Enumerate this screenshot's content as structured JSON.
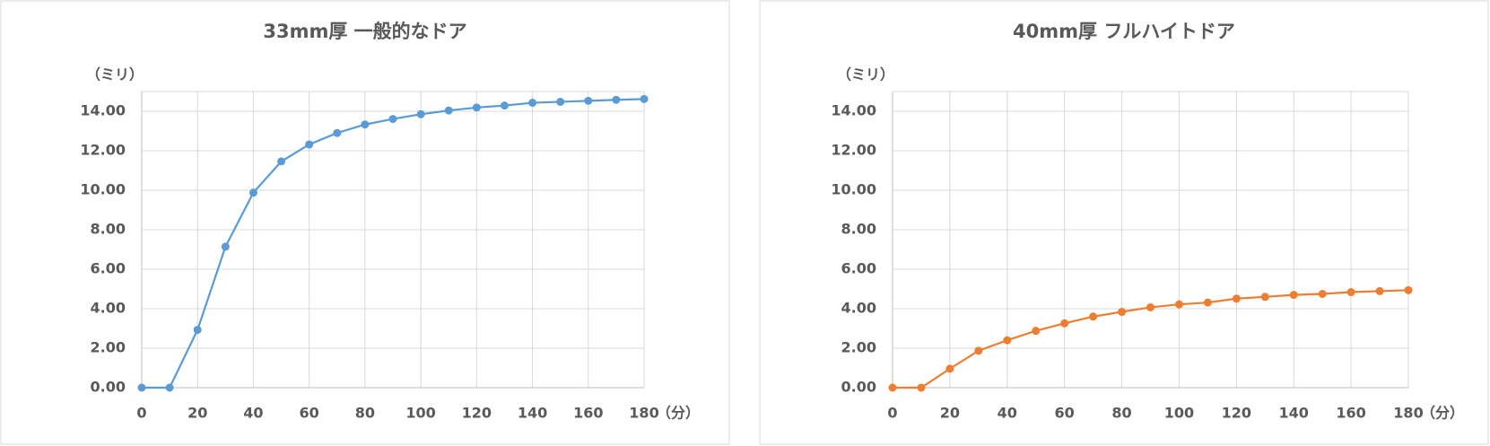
{
  "chart_data": [
    {
      "type": "line",
      "title": "33mm厚 一般的なドア",
      "y_label": "（ミリ）",
      "x_label": "（分）",
      "x": [
        0,
        10,
        20,
        30,
        40,
        50,
        60,
        70,
        80,
        90,
        100,
        110,
        120,
        130,
        140,
        150,
        160,
        170,
        180
      ],
      "series": [
        {
          "color": "#5b9bd5",
          "values": [
            0,
            0,
            2.93,
            7.14,
            9.88,
            11.46,
            12.32,
            12.9,
            13.33,
            13.61,
            13.85,
            14.04,
            14.19,
            14.29,
            14.43,
            14.48,
            14.53,
            14.58,
            14.62
          ]
        }
      ],
      "xlim": [
        0,
        180
      ],
      "xticks": [
        0,
        20,
        40,
        60,
        80,
        100,
        120,
        140,
        160,
        180
      ],
      "ylim": [
        0,
        15
      ],
      "yticks": [
        {
          "value": 0,
          "label": "0.00"
        },
        {
          "value": 2,
          "label": "2.00"
        },
        {
          "value": 4,
          "label": "4.00"
        },
        {
          "value": 6,
          "label": "6.00"
        },
        {
          "value": 8,
          "label": "8.00"
        },
        {
          "value": 10,
          "label": "10.00"
        },
        {
          "value": 12,
          "label": "12.00"
        },
        {
          "value": 14,
          "label": "14.00"
        }
      ],
      "grid": true
    },
    {
      "type": "line",
      "title": "40mm厚 フルハイトドア",
      "y_label": "（ミリ）",
      "x_label": "（分）",
      "x": [
        0,
        10,
        20,
        30,
        40,
        50,
        60,
        70,
        80,
        90,
        100,
        110,
        120,
        130,
        140,
        150,
        160,
        170,
        180
      ],
      "series": [
        {
          "color": "#ed7d31",
          "values": [
            0,
            0,
            0.96,
            1.87,
            2.4,
            2.88,
            3.26,
            3.6,
            3.84,
            4.07,
            4.22,
            4.31,
            4.51,
            4.6,
            4.7,
            4.75,
            4.84,
            4.89,
            4.94
          ]
        }
      ],
      "xlim": [
        0,
        180
      ],
      "xticks": [
        0,
        20,
        40,
        60,
        80,
        100,
        120,
        140,
        160,
        180
      ],
      "ylim": [
        0,
        15
      ],
      "yticks": [
        {
          "value": 0,
          "label": "0.00"
        },
        {
          "value": 2,
          "label": "2.00"
        },
        {
          "value": 4,
          "label": "4.00"
        },
        {
          "value": 6,
          "label": "6.00"
        },
        {
          "value": 8,
          "label": "8.00"
        },
        {
          "value": 10,
          "label": "10.00"
        },
        {
          "value": 12,
          "label": "12.00"
        },
        {
          "value": 14,
          "label": "14.00"
        }
      ],
      "grid": true
    }
  ]
}
